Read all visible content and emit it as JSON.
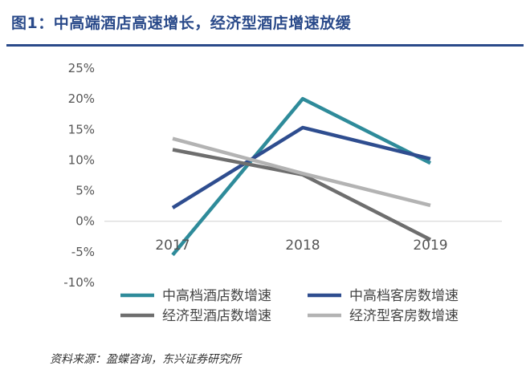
{
  "header": {
    "title": "图1：中高端酒店高速增长，经济型酒店增速放缓"
  },
  "footer": {
    "source": "资料来源：盈蝶咨询，东兴证券研究所"
  },
  "chart_data": {
    "type": "line",
    "title": "图1：中高端酒店高速增长，经济型酒店增速放缓",
    "xlabel": "",
    "ylabel": "",
    "categories": [
      "2017",
      "2018",
      "2019"
    ],
    "ylim": [
      -10,
      25
    ],
    "yticks": [
      25,
      20,
      15,
      10,
      5,
      0,
      -5,
      -10
    ],
    "ytick_labels": [
      "25%",
      "20%",
      "15%",
      "10%",
      "5%",
      "0%",
      "-5%",
      "-10%"
    ],
    "grid": false,
    "legend_position": "bottom",
    "series": [
      {
        "name": "中高档酒店数增速",
        "values": [
          -5.5,
          20.0,
          9.5
        ],
        "color": "#2e8b9a"
      },
      {
        "name": "中高档客房数增速",
        "values": [
          2.2,
          15.3,
          10.2
        ],
        "color": "#2e4d8f"
      },
      {
        "name": "经济型酒店数增速",
        "values": [
          11.7,
          7.6,
          -3.0
        ],
        "color": "#6e6e6e"
      },
      {
        "name": "经济型客房数增速",
        "values": [
          13.5,
          7.8,
          2.6
        ],
        "color": "#b3b3b3"
      }
    ]
  }
}
